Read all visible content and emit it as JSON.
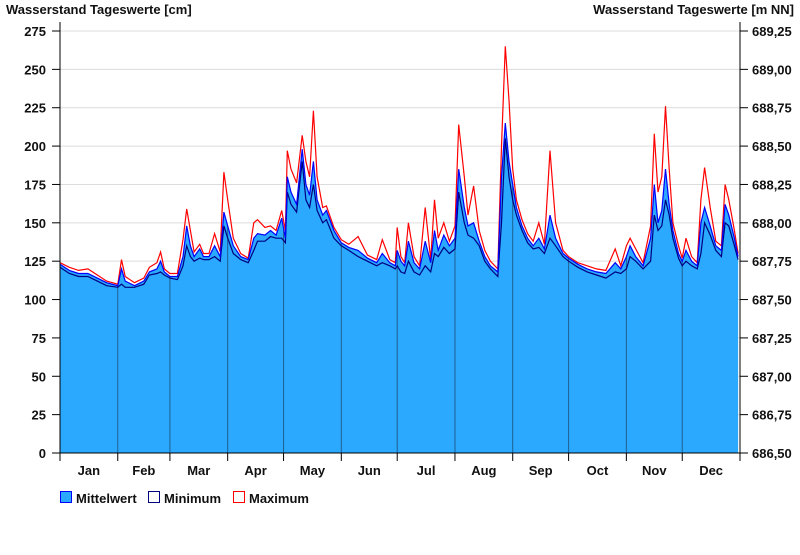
{
  "chart_data": {
    "type": "area",
    "title_left": "Wasserstand Tageswerte [cm]",
    "title_right": "Wasserstand Tageswerte [m NN]",
    "ylim": [
      0,
      275
    ],
    "yticks": [
      0,
      25,
      50,
      75,
      100,
      125,
      150,
      175,
      200,
      225,
      250,
      275
    ],
    "yticks_right": [
      "686,50",
      "686,75",
      "687,00",
      "687,25",
      "687,50",
      "687,75",
      "688,00",
      "688,25",
      "688,50",
      "688,75",
      "689,00",
      "689,25"
    ],
    "grid": true,
    "months": [
      "Jan",
      "Feb",
      "Mar",
      "Apr",
      "May",
      "Jun",
      "Jul",
      "Aug",
      "Sep",
      "Oct",
      "Nov",
      "Dec"
    ],
    "month_start_days": [
      0,
      31,
      59,
      90,
      120,
      151,
      181,
      212,
      243,
      273,
      304,
      334,
      365
    ],
    "x_days": [
      0,
      5,
      10,
      15,
      20,
      25,
      31,
      33,
      35,
      40,
      45,
      48,
      52,
      54,
      56,
      59,
      63,
      66,
      68,
      70,
      72,
      75,
      77,
      80,
      83,
      86,
      88,
      90,
      93,
      97,
      101,
      104,
      106,
      110,
      113,
      116,
      119,
      121,
      122,
      124,
      127,
      130,
      132,
      134,
      136,
      138,
      141,
      143,
      147,
      151,
      155,
      160,
      165,
      170,
      173,
      177,
      180,
      181,
      183,
      185,
      187,
      190,
      193,
      196,
      199,
      201,
      203,
      206,
      209,
      212,
      214,
      217,
      219,
      222,
      225,
      228,
      231,
      235,
      237,
      239,
      241,
      243,
      245,
      248,
      251,
      254,
      257,
      260,
      263,
      266,
      270,
      273,
      278,
      283,
      288,
      293,
      298,
      301,
      304,
      306,
      309,
      313,
      317,
      319,
      321,
      323,
      325,
      327,
      329,
      332,
      334,
      336,
      339,
      342,
      344,
      346,
      349,
      352,
      355,
      357,
      359,
      362,
      364
    ],
    "series": [
      {
        "name": "Mittelwert",
        "color": "#2aa9ff",
        "line_color": "#0000ff",
        "values": [
          123,
          119,
          117,
          117,
          114,
          111,
          109,
          120,
          112,
          109,
          112,
          118,
          120,
          125,
          118,
          115,
          115,
          128,
          148,
          135,
          128,
          133,
          128,
          128,
          135,
          128,
          157,
          148,
          135,
          128,
          126,
          140,
          143,
          142,
          145,
          142,
          153,
          140,
          180,
          170,
          162,
          198,
          175,
          168,
          190,
          165,
          155,
          158,
          145,
          137,
          134,
          132,
          127,
          124,
          130,
          124,
          122,
          132,
          125,
          122,
          138,
          124,
          120,
          138,
          124,
          145,
          132,
          142,
          135,
          140,
          185,
          160,
          148,
          150,
          138,
          128,
          122,
          118,
          180,
          215,
          190,
          175,
          160,
          148,
          140,
          135,
          140,
          133,
          155,
          140,
          130,
          127,
          123,
          120,
          118,
          117,
          124,
          120,
          128,
          135,
          128,
          122,
          140,
          175,
          150,
          158,
          185,
          162,
          145,
          130,
          125,
          132,
          125,
          122,
          150,
          160,
          148,
          135,
          132,
          162,
          155,
          140,
          128
        ]
      },
      {
        "name": "Minimum",
        "color": "#000080",
        "values": [
          121,
          117,
          115,
          115,
          112,
          109,
          108,
          110,
          108,
          108,
          110,
          116,
          117,
          118,
          116,
          114,
          113,
          122,
          135,
          128,
          125,
          127,
          126,
          126,
          128,
          125,
          148,
          140,
          130,
          126,
          124,
          132,
          138,
          138,
          141,
          140,
          140,
          137,
          170,
          162,
          157,
          190,
          165,
          160,
          175,
          158,
          150,
          152,
          140,
          135,
          132,
          128,
          125,
          122,
          124,
          122,
          120,
          122,
          118,
          117,
          125,
          118,
          116,
          122,
          118,
          130,
          128,
          134,
          130,
          133,
          170,
          150,
          142,
          140,
          135,
          125,
          120,
          115,
          150,
          205,
          180,
          165,
          155,
          145,
          137,
          133,
          134,
          130,
          140,
          135,
          128,
          125,
          121,
          118,
          116,
          114,
          118,
          117,
          120,
          128,
          125,
          120,
          125,
          155,
          145,
          148,
          165,
          155,
          140,
          127,
          122,
          125,
          122,
          120,
          130,
          150,
          142,
          132,
          128,
          150,
          148,
          135,
          126
        ]
      },
      {
        "name": "Maximum",
        "color": "#ff0000",
        "values": [
          124,
          121,
          119,
          120,
          116,
          112,
          110,
          126,
          115,
          111,
          114,
          121,
          124,
          131,
          120,
          117,
          117,
          139,
          159,
          145,
          131,
          136,
          130,
          130,
          143,
          131,
          183,
          165,
          140,
          130,
          127,
          150,
          152,
          147,
          148,
          145,
          158,
          145,
          197,
          185,
          176,
          207,
          190,
          180,
          223,
          180,
          160,
          161,
          147,
          139,
          136,
          141,
          129,
          126,
          139,
          126,
          124,
          147,
          128,
          124,
          150,
          128,
          122,
          160,
          126,
          165,
          140,
          150,
          138,
          148,
          214,
          180,
          155,
          174,
          145,
          132,
          125,
          120,
          200,
          265,
          230,
          185,
          165,
          152,
          143,
          138,
          150,
          136,
          197,
          150,
          132,
          128,
          124,
          122,
          120,
          119,
          133,
          122,
          135,
          140,
          133,
          124,
          148,
          208,
          170,
          180,
          226,
          185,
          150,
          135,
          127,
          140,
          128,
          124,
          165,
          186,
          160,
          138,
          135,
          175,
          165,
          145,
          130
        ]
      }
    ],
    "legend": [
      "Mittelwert",
      "Minimum",
      "Maximum"
    ],
    "legend_position": "bottom-left"
  }
}
